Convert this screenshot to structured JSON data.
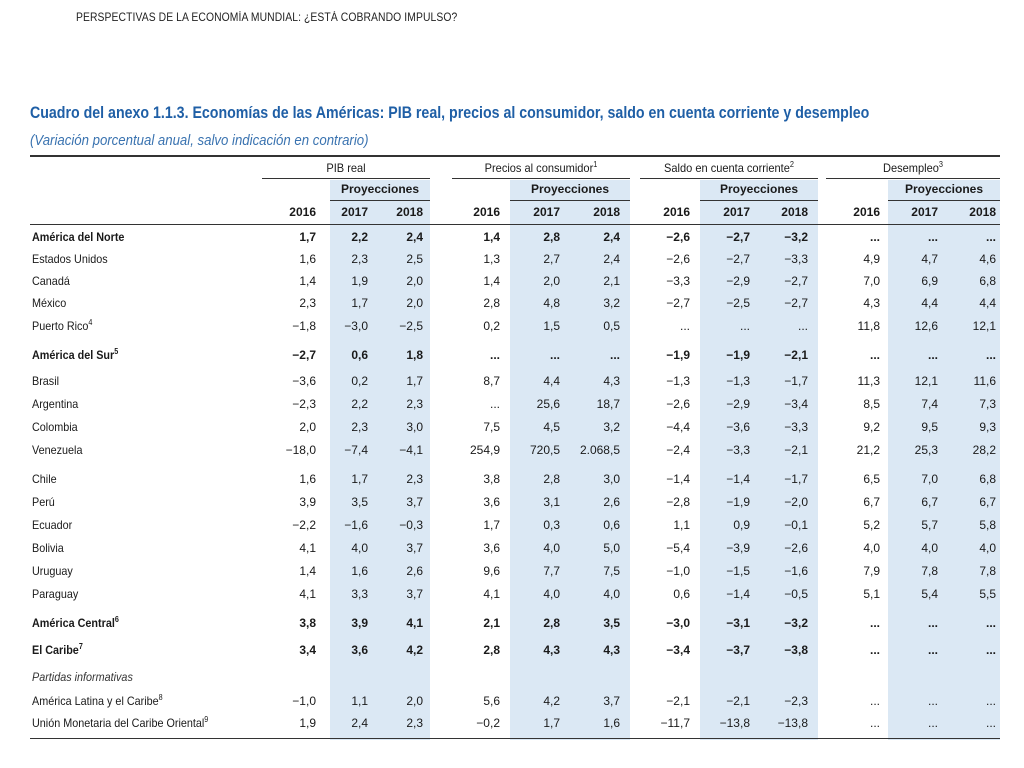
{
  "running_head": "PERSPECTIVAS DE LA ECONOMÍA MUNDIAL: ¿ESTÁ COBRANDO IMPULSO?",
  "table_title": "Cuadro del anexo 1.1.3. Economías de las Américas: PIB real, precios al consumidor, saldo en cuenta corriente y desempleo",
  "table_subtitle": "(Variación porcentual anual, salvo indicación en contrario)",
  "groups": [
    {
      "label": "PIB real",
      "note": ""
    },
    {
      "label": "Precios al consumidor",
      "note": "1"
    },
    {
      "label": "Saldo en cuenta corriente",
      "note": "2"
    },
    {
      "label": "Desempleo",
      "note": "3"
    }
  ],
  "projections_label": "Proyecciones",
  "years": [
    "2016",
    "2017",
    "2018"
  ],
  "rows": [
    {
      "label": "América del Norte",
      "note": "",
      "style": "bold",
      "values": [
        "1,7",
        "2,2",
        "2,4",
        "1,4",
        "2,8",
        "2,4",
        "−2,6",
        "−2,7",
        "−3,2",
        "...",
        "...",
        "..."
      ]
    },
    {
      "label": "Estados Unidos",
      "note": "",
      "style": "",
      "values": [
        "1,6",
        "2,3",
        "2,5",
        "1,3",
        "2,7",
        "2,4",
        "−2,6",
        "−2,7",
        "−3,3",
        "4,9",
        "4,7",
        "4,6"
      ]
    },
    {
      "label": "Canadá",
      "note": "",
      "style": "",
      "values": [
        "1,4",
        "1,9",
        "2,0",
        "1,4",
        "2,0",
        "2,1",
        "−3,3",
        "−2,9",
        "−2,7",
        "7,0",
        "6,9",
        "6,8"
      ]
    },
    {
      "label": "México",
      "note": "",
      "style": "",
      "values": [
        "2,3",
        "1,7",
        "2,0",
        "2,8",
        "4,8",
        "3,2",
        "−2,7",
        "−2,5",
        "−2,7",
        "4,3",
        "4,4",
        "4,4"
      ]
    },
    {
      "label": "Puerto Rico",
      "note": "4",
      "style": "",
      "values": [
        "−1,8",
        "−3,0",
        "−2,5",
        "0,2",
        "1,5",
        "0,5",
        "...",
        "...",
        "...",
        "11,8",
        "12,6",
        "12,1"
      ]
    },
    {
      "label": "América del Sur",
      "note": "5",
      "style": "bold",
      "values": [
        "−2,7",
        "0,6",
        "1,8",
        "...",
        "...",
        "...",
        "−1,9",
        "−1,9",
        "−2,1",
        "...",
        "...",
        "..."
      ]
    },
    {
      "label": "Brasil",
      "note": "",
      "style": "",
      "values": [
        "−3,6",
        "0,2",
        "1,7",
        "8,7",
        "4,4",
        "4,3",
        "−1,3",
        "−1,3",
        "−1,7",
        "11,3",
        "12,1",
        "11,6"
      ]
    },
    {
      "label": "Argentina",
      "note": "",
      "style": "",
      "values": [
        "−2,3",
        "2,2",
        "2,3",
        "...",
        "25,6",
        "18,7",
        "−2,6",
        "−2,9",
        "−3,4",
        "8,5",
        "7,4",
        "7,3"
      ]
    },
    {
      "label": "Colombia",
      "note": "",
      "style": "",
      "values": [
        "2,0",
        "2,3",
        "3,0",
        "7,5",
        "4,5",
        "3,2",
        "−4,4",
        "−3,6",
        "−3,3",
        "9,2",
        "9,5",
        "9,3"
      ]
    },
    {
      "label": "Venezuela",
      "note": "",
      "style": "",
      "values": [
        "−18,0",
        "−7,4",
        "−4,1",
        "254,9",
        "720,5",
        "2.068,5",
        "−2,4",
        "−3,3",
        "−2,1",
        "21,2",
        "25,3",
        "28,2"
      ]
    },
    {
      "label": "Chile",
      "note": "",
      "style": "",
      "values": [
        "1,6",
        "1,7",
        "2,3",
        "3,8",
        "2,8",
        "3,0",
        "−1,4",
        "−1,4",
        "−1,7",
        "6,5",
        "7,0",
        "6,8"
      ]
    },
    {
      "label": "Perú",
      "note": "",
      "style": "",
      "values": [
        "3,9",
        "3,5",
        "3,7",
        "3,6",
        "3,1",
        "2,6",
        "−2,8",
        "−1,9",
        "−2,0",
        "6,7",
        "6,7",
        "6,7"
      ]
    },
    {
      "label": "Ecuador",
      "note": "",
      "style": "",
      "values": [
        "−2,2",
        "−1,6",
        "−0,3",
        "1,7",
        "0,3",
        "0,6",
        "1,1",
        "0,9",
        "−0,1",
        "5,2",
        "5,7",
        "5,8"
      ]
    },
    {
      "label": "Bolivia",
      "note": "",
      "style": "",
      "values": [
        "4,1",
        "4,0",
        "3,7",
        "3,6",
        "4,0",
        "5,0",
        "−5,4",
        "−3,9",
        "−2,6",
        "4,0",
        "4,0",
        "4,0"
      ]
    },
    {
      "label": "Uruguay",
      "note": "",
      "style": "",
      "values": [
        "1,4",
        "1,6",
        "2,6",
        "9,6",
        "7,7",
        "7,5",
        "−1,0",
        "−1,5",
        "−1,6",
        "7,9",
        "7,8",
        "7,8"
      ]
    },
    {
      "label": "Paraguay",
      "note": "",
      "style": "",
      "values": [
        "4,1",
        "3,3",
        "3,7",
        "4,1",
        "4,0",
        "4,0",
        "0,6",
        "−1,4",
        "−0,5",
        "5,1",
        "5,4",
        "5,5"
      ]
    },
    {
      "label": "América Central",
      "note": "6",
      "style": "bold",
      "values": [
        "3,8",
        "3,9",
        "4,1",
        "2,1",
        "2,8",
        "3,5",
        "−3,0",
        "−3,1",
        "−3,2",
        "...",
        "...",
        "..."
      ]
    },
    {
      "label": "El Caribe",
      "note": "7",
      "style": "bold",
      "values": [
        "3,4",
        "3,6",
        "4,2",
        "2,8",
        "4,3",
        "4,3",
        "−3,4",
        "−3,7",
        "−3,8",
        "...",
        "...",
        "..."
      ]
    },
    {
      "label": "Partidas informativas",
      "note": "",
      "style": "italic",
      "values": [
        "",
        "",
        "",
        "",
        "",
        "",
        "",
        "",
        "",
        "",
        "",
        ""
      ]
    },
    {
      "label": "América Latina y el Caribe",
      "note": "8",
      "style": "",
      "values": [
        "−1,0",
        "1,1",
        "2,0",
        "5,6",
        "4,2",
        "3,7",
        "−2,1",
        "−2,1",
        "−2,3",
        "...",
        "...",
        "..."
      ]
    },
    {
      "label": "Unión Monetaria del Caribe Oriental",
      "note": "9",
      "style": "",
      "values": [
        "1,9",
        "2,4",
        "2,3",
        "−0,2",
        "1,7",
        "1,6",
        "−11,7",
        "−13,8",
        "−13,8",
        "...",
        "...",
        "..."
      ]
    }
  ]
}
